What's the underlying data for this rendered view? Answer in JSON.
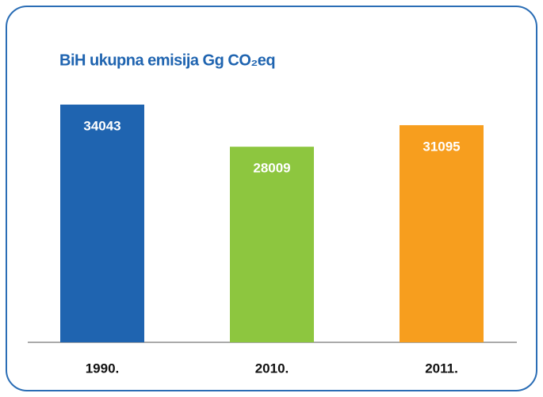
{
  "chart_data": {
    "type": "bar",
    "title": "BiH ukupna emisija Gg CO₂eq",
    "categories": [
      "1990.",
      "2010.",
      "2011."
    ],
    "values": [
      34043,
      28009,
      31095
    ],
    "colors": [
      "#1f64b0",
      "#8dc63f",
      "#f79e1e"
    ]
  }
}
